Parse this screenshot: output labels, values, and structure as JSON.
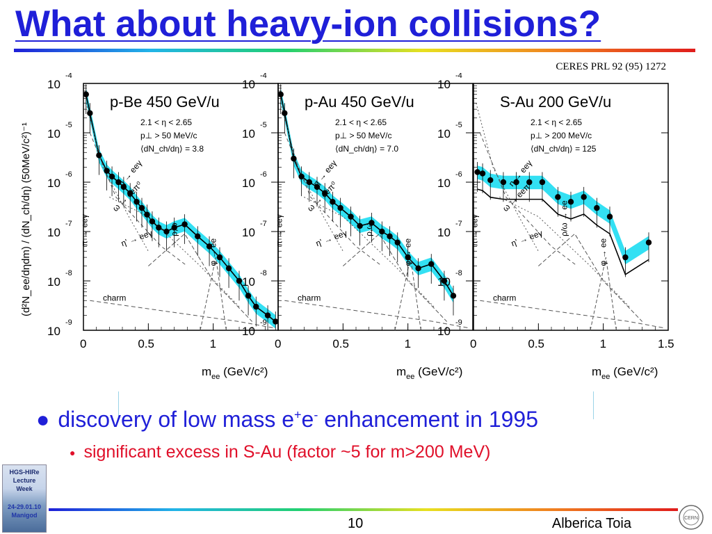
{
  "title": "What about heavy-ion collisions?",
  "citation": "CERES PRL 92 (95) 1272",
  "bullets": {
    "main_pre": "discovery of low mass e",
    "main_sup1": "+",
    "main_mid": "e",
    "main_sup2": "-",
    "main_post": " enhancement in 1995",
    "sub": "significant excess in S-Au (factor ~5 for m>200 MeV)"
  },
  "badge": {
    "line1": "HGS-HIRe",
    "line2": "Lecture",
    "line3": "Week",
    "date": "24-29.01.10",
    "place": "Manigod"
  },
  "footer": {
    "page": "10",
    "author": "Alberica Toia"
  },
  "colors": {
    "title": "#1f1fd8",
    "sub_bullet": "#e0102a",
    "band": "#00d8f0"
  },
  "chart_data": {
    "type": "scatter",
    "yscale": "log",
    "ylabel": "(d²N_ee/dηdm) / (dN_ch/dη) (50MeV/c²)⁻¹",
    "xlabel": "m_ee (GeV/c²)",
    "ylim": [
      1e-09,
      0.0001
    ],
    "xlim": [
      0,
      1.5
    ],
    "x_ticks": [
      "0",
      "0.5",
      "1",
      "1.5"
    ],
    "y_ticks": [
      "10⁻⁹",
      "10⁻⁸",
      "10⁻⁷",
      "10⁻⁶",
      "10⁻⁵",
      "10⁻⁴"
    ],
    "panels": [
      {
        "name": "p-Be 450 GeV/u",
        "cuts": [
          "2.1 < η < 2.65",
          "p⊥ > 50 MeV/c",
          "⟨dN_ch/dη⟩ = 3.8"
        ],
        "points": [
          [
            0.02,
            6e-05
          ],
          [
            0.05,
            2.5e-05
          ],
          [
            0.12,
            3.5e-06
          ],
          [
            0.18,
            1.7e-06
          ],
          [
            0.22,
            1.3e-06
          ],
          [
            0.27,
            1e-06
          ],
          [
            0.31,
            8e-07
          ],
          [
            0.36,
            6e-07
          ],
          [
            0.41,
            4e-07
          ],
          [
            0.45,
            3e-07
          ],
          [
            0.49,
            2.2e-07
          ],
          [
            0.53,
            1.6e-07
          ],
          [
            0.58,
            1.2e-07
          ],
          [
            0.64,
            1e-07
          ],
          [
            0.7,
            1.2e-07
          ],
          [
            0.78,
            1.4e-07
          ],
          [
            0.88,
            8e-08
          ],
          [
            0.97,
            5e-08
          ],
          [
            1.05,
            3e-08
          ],
          [
            1.12,
            1.8e-08
          ],
          [
            1.2,
            1e-08
          ],
          [
            1.27,
            5e-09
          ],
          [
            1.33,
            3e-09
          ],
          [
            1.42,
            2e-09
          ],
          [
            1.48,
            1.5e-09
          ]
        ],
        "labels": [
          "η → eeγ",
          "ω → eeπ⁰",
          "η' → eeγ",
          "ρ,ω",
          "π → eeγ",
          "φ → ee",
          "charm"
        ]
      },
      {
        "name": "p-Au 450 GeV/u",
        "cuts": [
          "2.1 < η < 2.65",
          "p⊥ > 50 MeV/c",
          "⟨dN_ch/dη⟩ = 7.0"
        ],
        "points": [
          [
            0.02,
            6e-05
          ],
          [
            0.05,
            2.5e-05
          ],
          [
            0.12,
            3e-06
          ],
          [
            0.18,
            1.3e-06
          ],
          [
            0.24,
            1e-06
          ],
          [
            0.3,
            8e-07
          ],
          [
            0.36,
            6e-07
          ],
          [
            0.42,
            4e-07
          ],
          [
            0.48,
            3e-07
          ],
          [
            0.56,
            2e-07
          ],
          [
            0.63,
            1.3e-07
          ],
          [
            0.72,
            1.5e-07
          ],
          [
            0.8,
            1e-07
          ],
          [
            0.86,
            8e-08
          ],
          [
            0.92,
            6e-08
          ],
          [
            1.0,
            3e-08
          ],
          [
            1.08,
            1.8e-08
          ],
          [
            1.18,
            2.2e-08
          ],
          [
            1.28,
            1e-08
          ],
          [
            1.35,
            5e-09
          ]
        ],
        "labels": [
          "η → eeγ",
          "ω → eeπ⁰",
          "η' → eeγ",
          "ρ,ω",
          "π → eeγ",
          "φ → ee",
          "charm"
        ]
      },
      {
        "name": "S-Au 200 GeV/u",
        "cuts": [
          "2.1 < η < 2.65",
          "p⊥ > 200 MeV/c",
          "⟨dN_ch/dη⟩ = 125"
        ],
        "points": [
          [
            0.03,
            1.6e-06
          ],
          [
            0.07,
            1.5e-06
          ],
          [
            0.13,
            1.1e-06
          ],
          [
            0.23,
            1e-06
          ],
          [
            0.33,
            1e-06
          ],
          [
            0.43,
            1e-06
          ],
          [
            0.53,
            1e-06
          ],
          [
            0.65,
            5e-07
          ],
          [
            0.75,
            4e-07
          ],
          [
            0.85,
            5e-07
          ],
          [
            0.95,
            3e-07
          ],
          [
            1.05,
            2e-07
          ],
          [
            1.17,
            3e-08
          ],
          [
            1.35,
            6e-08
          ]
        ],
        "labels": [
          "η → eeγ",
          "ω → eeπ⁰",
          "η' → eeγ",
          "ρ/ω → ee",
          "π → eeγ",
          "φ → ee",
          "charm"
        ]
      }
    ]
  }
}
